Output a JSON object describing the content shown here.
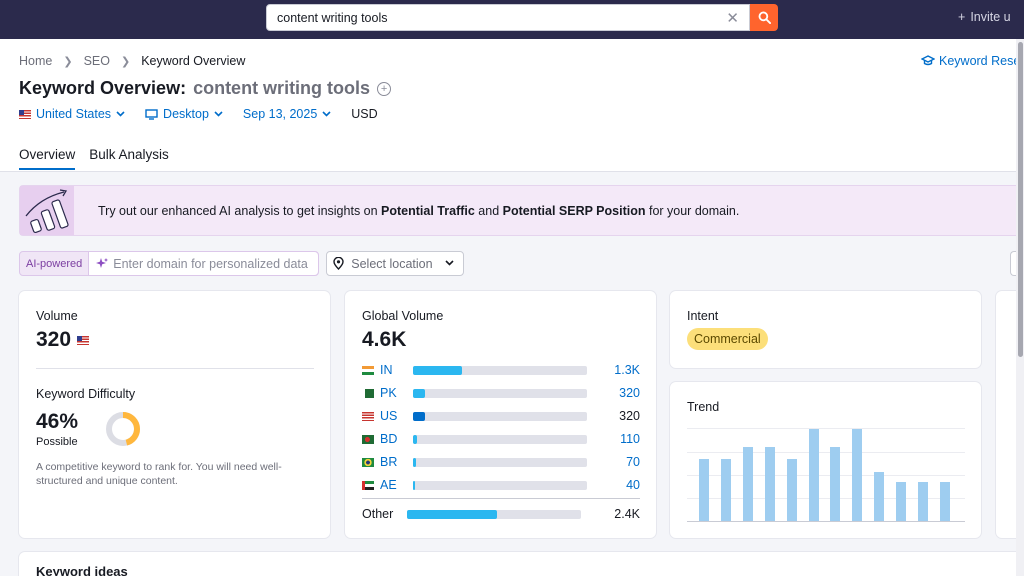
{
  "search": {
    "value": "content writing tools",
    "clear_icon": "close-icon",
    "button_icon": "search-icon"
  },
  "topbar": {
    "invite": "Invite u"
  },
  "breadcrumb": [
    "Home",
    "SEO",
    "Keyword Overview"
  ],
  "keyword_research_link": "Keyword Rese",
  "title": {
    "prefix": "Keyword Overview:",
    "keyword": "content writing tools"
  },
  "filters": {
    "country": "United States",
    "device": "Desktop",
    "date": "Sep 13, 2025",
    "currency": "USD"
  },
  "tabs": [
    {
      "label": "Overview",
      "active": true
    },
    {
      "label": "Bulk Analysis",
      "active": false
    }
  ],
  "banner": {
    "text_1": "Try out our enhanced AI analysis to get insights on ",
    "bold_1": "Potential Traffic",
    "text_2": " and ",
    "bold_2": "Potential SERP Position",
    "text_3": " for your domain."
  },
  "ai": {
    "label": "AI-powered",
    "placeholder": "Enter domain for personalized data",
    "location_placeholder": "Select location"
  },
  "volume": {
    "label": "Volume",
    "value": "320"
  },
  "difficulty": {
    "label": "Keyword Difficulty",
    "value": "46%",
    "level": "Possible",
    "percent": 46,
    "description": "A competitive keyword to rank for. You will need well-structured and unique content."
  },
  "global_volume": {
    "label": "Global Volume",
    "value": "4.6K",
    "rows": [
      {
        "code": "IN",
        "value": "1.3K",
        "share": 0.28,
        "link": true
      },
      {
        "code": "PK",
        "value": "320",
        "share": 0.07,
        "link": true
      },
      {
        "code": "US",
        "value": "320",
        "share": 0.07,
        "link": false
      },
      {
        "code": "BD",
        "value": "110",
        "share": 0.025,
        "link": true
      },
      {
        "code": "BR",
        "value": "70",
        "share": 0.015,
        "link": true
      },
      {
        "code": "AE",
        "value": "40",
        "share": 0.012,
        "link": true
      }
    ],
    "other": {
      "label": "Other",
      "value": "2.4K",
      "share": 0.52
    }
  },
  "intent": {
    "label": "Intent",
    "value": "Commercial"
  },
  "trend": {
    "label": "Trend",
    "values": [
      0.67,
      0.67,
      0.8,
      0.8,
      0.67,
      1.0,
      0.8,
      1.0,
      0.53,
      0.42,
      0.42,
      0.42
    ]
  },
  "keyword_ideas": {
    "label": "Keyword ideas"
  },
  "colors": {
    "accent": "#006dca",
    "search_button": "#ff642d",
    "topbar": "#2b2a4c",
    "bar": "#2bb7f0",
    "trend": "#9ecdf0"
  }
}
